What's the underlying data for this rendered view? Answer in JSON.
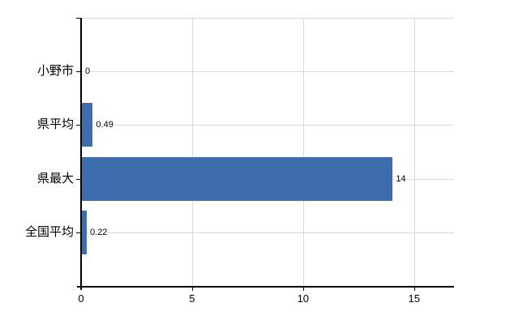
{
  "chart_data": {
    "type": "bar",
    "orientation": "horizontal",
    "title": "",
    "categories": [
      "小野市",
      "県平均",
      "県最大",
      "全国平均"
    ],
    "values": [
      0,
      0.49,
      14,
      0.22
    ],
    "value_labels": [
      "0",
      "0.49",
      "14",
      "0.22"
    ],
    "x_ticks": [
      0,
      5,
      10,
      15
    ],
    "x_tick_labels": [
      "0",
      "5",
      "10",
      "15"
    ],
    "xlim": [
      0,
      16.8
    ],
    "ylabel": "",
    "xlabel": "",
    "grid": true,
    "legend_position": "none",
    "colors": {
      "bar": "#3d6dad",
      "gridline": "#d9d9d9",
      "axis": "#000000",
      "text": "#000000",
      "background": "#ffffff"
    }
  }
}
